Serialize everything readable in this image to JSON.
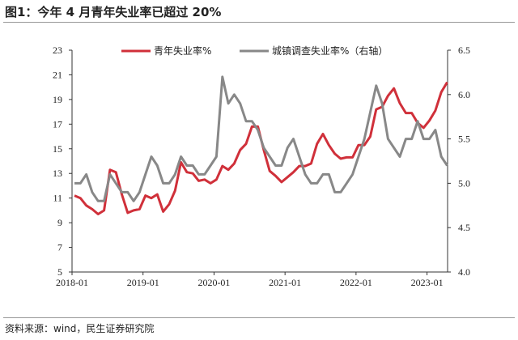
{
  "title": "图1：今年 4 月青年失业率已超过 20%",
  "source": "资料来源：wind，民生证券研究院",
  "chart_data": {
    "type": "line",
    "title": "图1：今年 4 月青年失业率已超过 20%",
    "x_start": "2018-01",
    "x_end": "2023-04",
    "x_ticks": [
      "2018-01",
      "2019-01",
      "2020-01",
      "2021-01",
      "2022-01",
      "2023-01"
    ],
    "left_axis": {
      "ylim": [
        5,
        23
      ],
      "ticks": [
        5,
        7,
        9,
        11,
        13,
        15,
        17,
        19,
        21,
        23
      ]
    },
    "right_axis": {
      "ylim": [
        4.0,
        6.5
      ],
      "ticks": [
        "4.0",
        "4.5",
        "5.0",
        "5.5",
        "6.0",
        "6.5"
      ]
    },
    "legend_position": "top",
    "grid": false,
    "series": [
      {
        "name": "青年失业率%",
        "axis": "left",
        "color": "#d0303a",
        "values": [
          11.2,
          11.0,
          10.4,
          10.1,
          9.7,
          10.0,
          13.3,
          13.1,
          11.3,
          9.8,
          10.0,
          10.1,
          11.2,
          11.0,
          11.3,
          9.9,
          10.5,
          11.6,
          13.9,
          13.1,
          13.0,
          12.4,
          12.5,
          12.2,
          12.5,
          13.6,
          13.3,
          13.8,
          14.9,
          15.4,
          16.8,
          16.8,
          14.9,
          13.2,
          12.8,
          12.3,
          12.7,
          13.1,
          13.6,
          13.6,
          13.8,
          15.4,
          16.2,
          15.3,
          14.6,
          14.2,
          14.3,
          14.3,
          15.3,
          15.3,
          16.0,
          18.2,
          18.4,
          19.3,
          19.9,
          18.7,
          17.9,
          17.9,
          17.1,
          16.7,
          17.3,
          18.1,
          19.6,
          20.4
        ]
      },
      {
        "name": "城镇调查失业率%（右轴）",
        "axis": "right",
        "color": "#888888",
        "values": [
          5.0,
          5.0,
          5.1,
          4.9,
          4.8,
          4.8,
          5.1,
          5.0,
          4.9,
          4.9,
          4.8,
          4.9,
          5.1,
          5.3,
          5.2,
          5.0,
          5.0,
          5.1,
          5.3,
          5.2,
          5.2,
          5.1,
          5.1,
          5.2,
          5.3,
          6.2,
          5.9,
          6.0,
          5.9,
          5.7,
          5.7,
          5.6,
          5.4,
          5.3,
          5.2,
          5.2,
          5.4,
          5.5,
          5.3,
          5.1,
          5.0,
          5.0,
          5.1,
          5.1,
          4.9,
          4.9,
          5.0,
          5.1,
          5.3,
          5.5,
          5.8,
          6.1,
          5.9,
          5.5,
          5.4,
          5.3,
          5.5,
          5.5,
          5.7,
          5.5,
          5.5,
          5.6,
          5.3,
          5.2
        ]
      }
    ]
  }
}
